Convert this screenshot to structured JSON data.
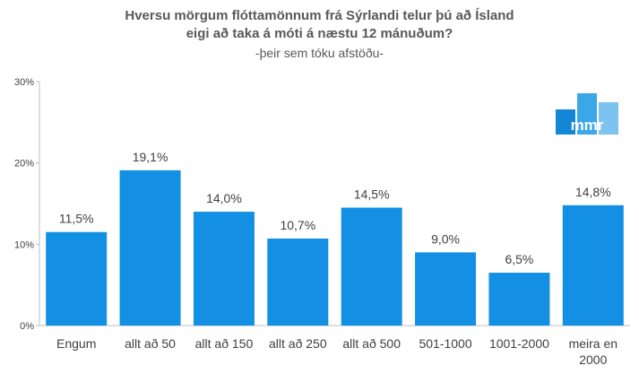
{
  "chart_data": {
    "type": "bar",
    "title_lines": [
      "Hversu mörgum flóttamönnum frá Sýrlandi telur þú að Ísland",
      "eigi að taka á móti á næstu 12 mánuðum?"
    ],
    "subtitle": "-þeir sem tóku afstöðu-",
    "categories": [
      [
        "Engum"
      ],
      [
        "allt að 50"
      ],
      [
        "allt að 150"
      ],
      [
        "allt að 250"
      ],
      [
        "allt að 500"
      ],
      [
        "501-1000"
      ],
      [
        "1001-2000"
      ],
      [
        "meira en",
        "2000"
      ]
    ],
    "values": [
      11.5,
      19.1,
      14.0,
      10.7,
      14.5,
      9.0,
      6.5,
      14.8
    ],
    "value_labels": [
      "11,5%",
      "19,1%",
      "14,0%",
      "10,7%",
      "14,5%",
      "9,0%",
      "6,5%",
      "14,8%"
    ],
    "y_ticks": [
      0,
      10,
      20,
      30
    ],
    "y_tick_labels": [
      "0%",
      "10%",
      "20%",
      "30%"
    ],
    "ylim": [
      0,
      30
    ],
    "grid": false,
    "legend": "none",
    "colors": {
      "bar": "#1390e3",
      "text": "#404040",
      "title": "#595959",
      "axis": "#bfbfbf",
      "logo_light": "#7cc3ef",
      "logo_mid": "#3aa7e8",
      "logo_dark": "#1486d6"
    },
    "logo_text": "mmr"
  }
}
